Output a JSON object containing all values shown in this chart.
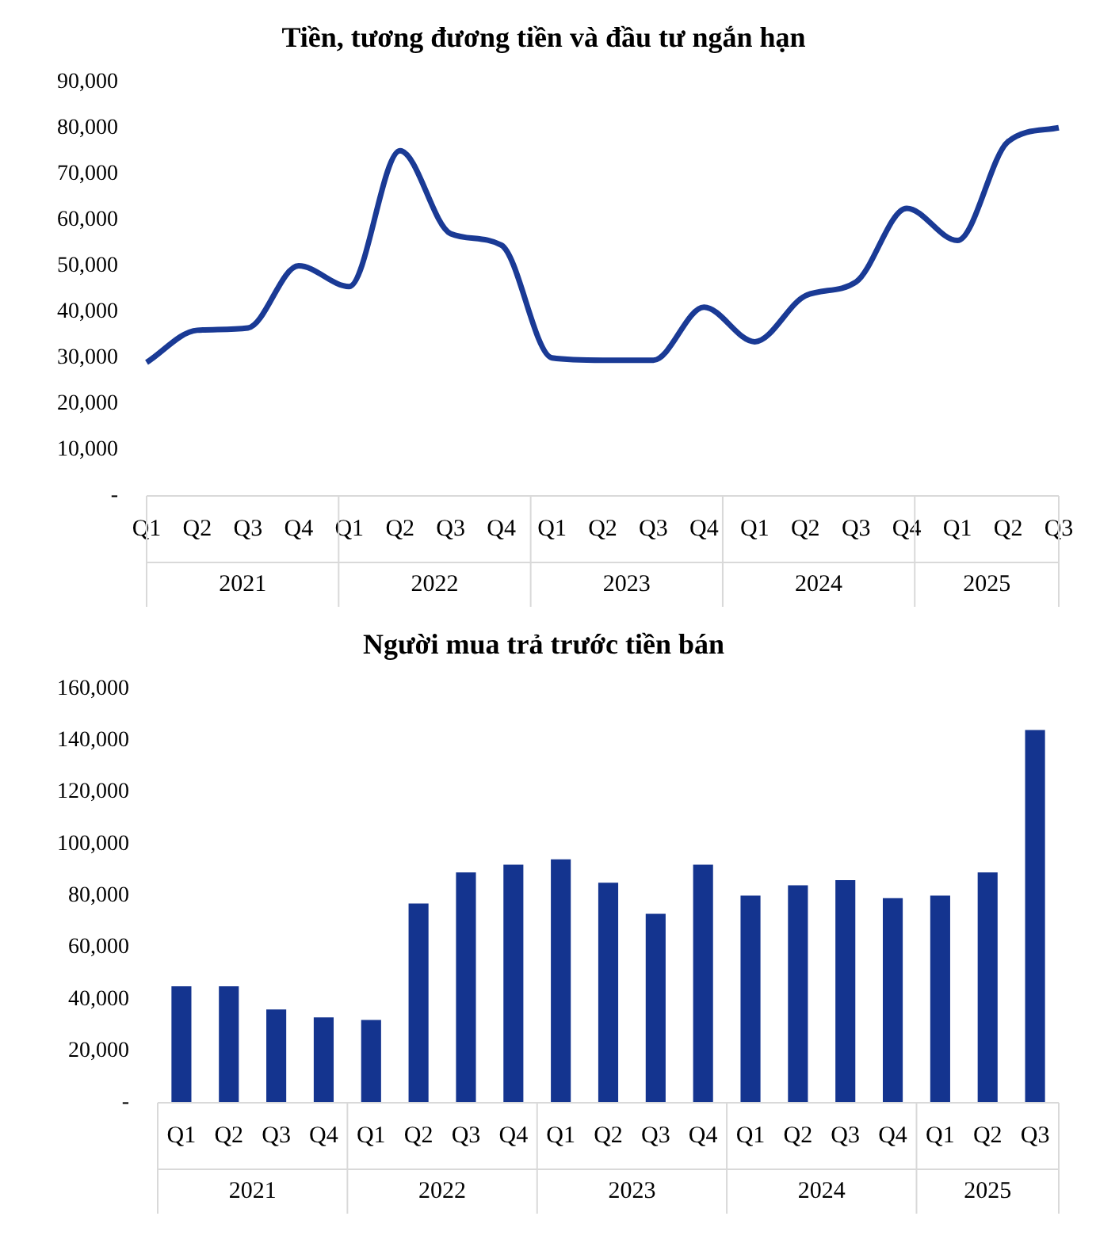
{
  "chart_data": [
    {
      "type": "line",
      "title": "Tiền, tương đương tiền và đầu tư ngắn hạn",
      "categories": [
        "Q1",
        "Q2",
        "Q3",
        "Q4",
        "Q1",
        "Q2",
        "Q3",
        "Q4",
        "Q1",
        "Q2",
        "Q3",
        "Q4",
        "Q1",
        "Q2",
        "Q3",
        "Q4",
        "Q1",
        "Q2",
        "Q3"
      ],
      "series": [
        {
          "color": "#1a3a95",
          "values": [
            29000,
            36000,
            36500,
            50000,
            45500,
            75000,
            57000,
            54500,
            30000,
            29500,
            29500,
            41000,
            33500,
            43500,
            46500,
            62500,
            55500,
            77000,
            80000
          ]
        }
      ],
      "ylim": [
        0,
        90000
      ],
      "yticks": [
        {
          "value": 0,
          "label": "-"
        },
        {
          "value": 10000,
          "label": "10,000"
        },
        {
          "value": 20000,
          "label": "20,000"
        },
        {
          "value": 30000,
          "label": "30,000"
        },
        {
          "value": 40000,
          "label": "40,000"
        },
        {
          "value": 50000,
          "label": "50,000"
        },
        {
          "value": 60000,
          "label": "60,000"
        },
        {
          "value": 70000,
          "label": "70,000"
        },
        {
          "value": 80000,
          "label": "80,000"
        },
        {
          "value": 90000,
          "label": "90,000"
        }
      ],
      "annotations": [
        "2021",
        "2022",
        "2023",
        "2024",
        "2025"
      ],
      "grid": false,
      "legend": false,
      "marker": "none"
    },
    {
      "type": "bar",
      "title": "Người mua trả trước tiền bán",
      "categories": [
        "Q1",
        "Q2",
        "Q3",
        "Q4",
        "Q1",
        "Q2",
        "Q3",
        "Q4",
        "Q1",
        "Q2",
        "Q3",
        "Q4",
        "Q1",
        "Q2",
        "Q3",
        "Q4",
        "Q1",
        "Q2",
        "Q3"
      ],
      "series": [
        {
          "color": "#14348f",
          "values": [
            45000,
            45000,
            36000,
            33000,
            32000,
            77000,
            89000,
            92000,
            94000,
            85000,
            73000,
            92000,
            80000,
            84000,
            86000,
            79000,
            80000,
            89000,
            144000
          ]
        }
      ],
      "ylim": [
        0,
        160000
      ],
      "yticks": [
        {
          "value": 0,
          "label": "-"
        },
        {
          "value": 20000,
          "label": "20,000"
        },
        {
          "value": 40000,
          "label": "40,000"
        },
        {
          "value": 60000,
          "label": "60,000"
        },
        {
          "value": 80000,
          "label": "80,000"
        },
        {
          "value": 100000,
          "label": "100,000"
        },
        {
          "value": 120000,
          "label": "120,000"
        },
        {
          "value": 140000,
          "label": "140,000"
        },
        {
          "value": 160000,
          "label": "160,000"
        }
      ],
      "annotations": [
        "2021",
        "2022",
        "2023",
        "2024",
        "2025"
      ],
      "grid": false,
      "legend": false
    }
  ]
}
